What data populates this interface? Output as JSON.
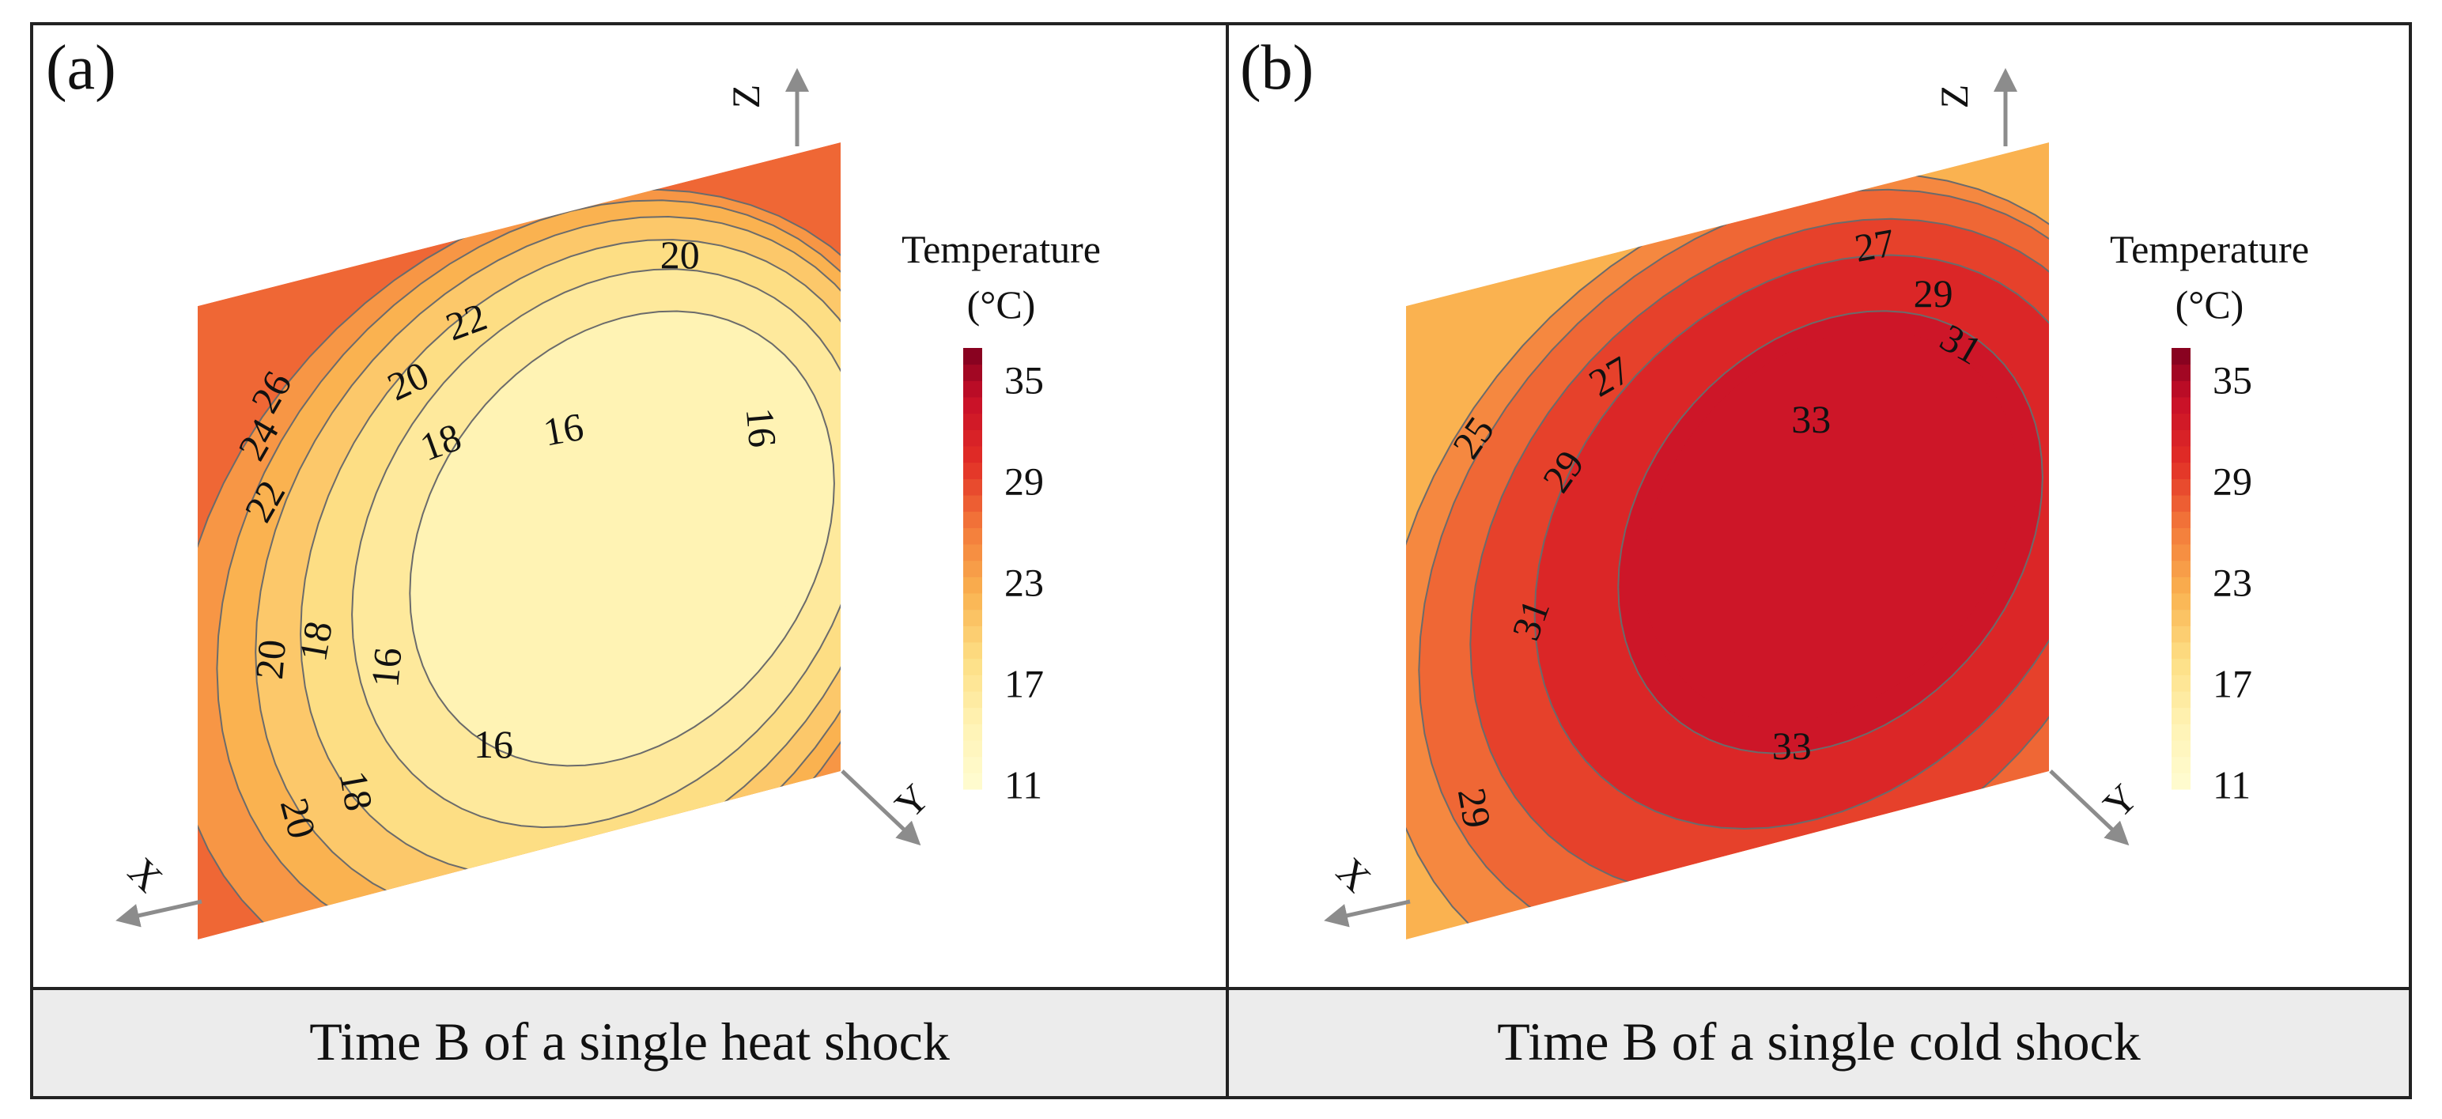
{
  "figure": {
    "panels": [
      {
        "letter": "(a)",
        "caption": "Time B of a single heat shock"
      },
      {
        "letter": "(b)",
        "caption": "Time B of a single cold shock"
      }
    ]
  },
  "chart_data": [
    {
      "type": "contour",
      "panel": "(a)",
      "title": "Time B of a single heat shock",
      "axes": {
        "x": "X",
        "y": "Y",
        "z": "Z"
      },
      "colorbar": {
        "title": "Temperature",
        "unit": "(°C)",
        "range": [
          11,
          38
        ],
        "ticks": [
          11,
          17,
          23,
          29,
          35
        ]
      },
      "contour_levels": [
        16,
        18,
        20,
        22,
        24,
        26
      ],
      "contour_labels": [
        "26",
        "24",
        "22",
        "22",
        "20",
        "20",
        "20",
        "18",
        "18",
        "18",
        "16",
        "16",
        "16",
        "16",
        "20"
      ],
      "min_temperature_region": 15,
      "corner_max": 28
    },
    {
      "type": "contour",
      "panel": "(b)",
      "title": "Time B of a single cold shock",
      "axes": {
        "x": "X",
        "y": "Y",
        "z": "Z"
      },
      "colorbar": {
        "title": "Temperature",
        "unit": "(°C)",
        "range": [
          11,
          38
        ],
        "ticks": [
          11,
          17,
          23,
          29,
          35
        ]
      },
      "contour_levels": [
        25,
        27,
        29,
        31,
        33
      ],
      "contour_labels": [
        "27",
        "27",
        "25",
        "29",
        "29",
        "31",
        "31",
        "33",
        "33",
        "29"
      ],
      "max_temperature_region": 34,
      "corner_min": 23
    }
  ]
}
